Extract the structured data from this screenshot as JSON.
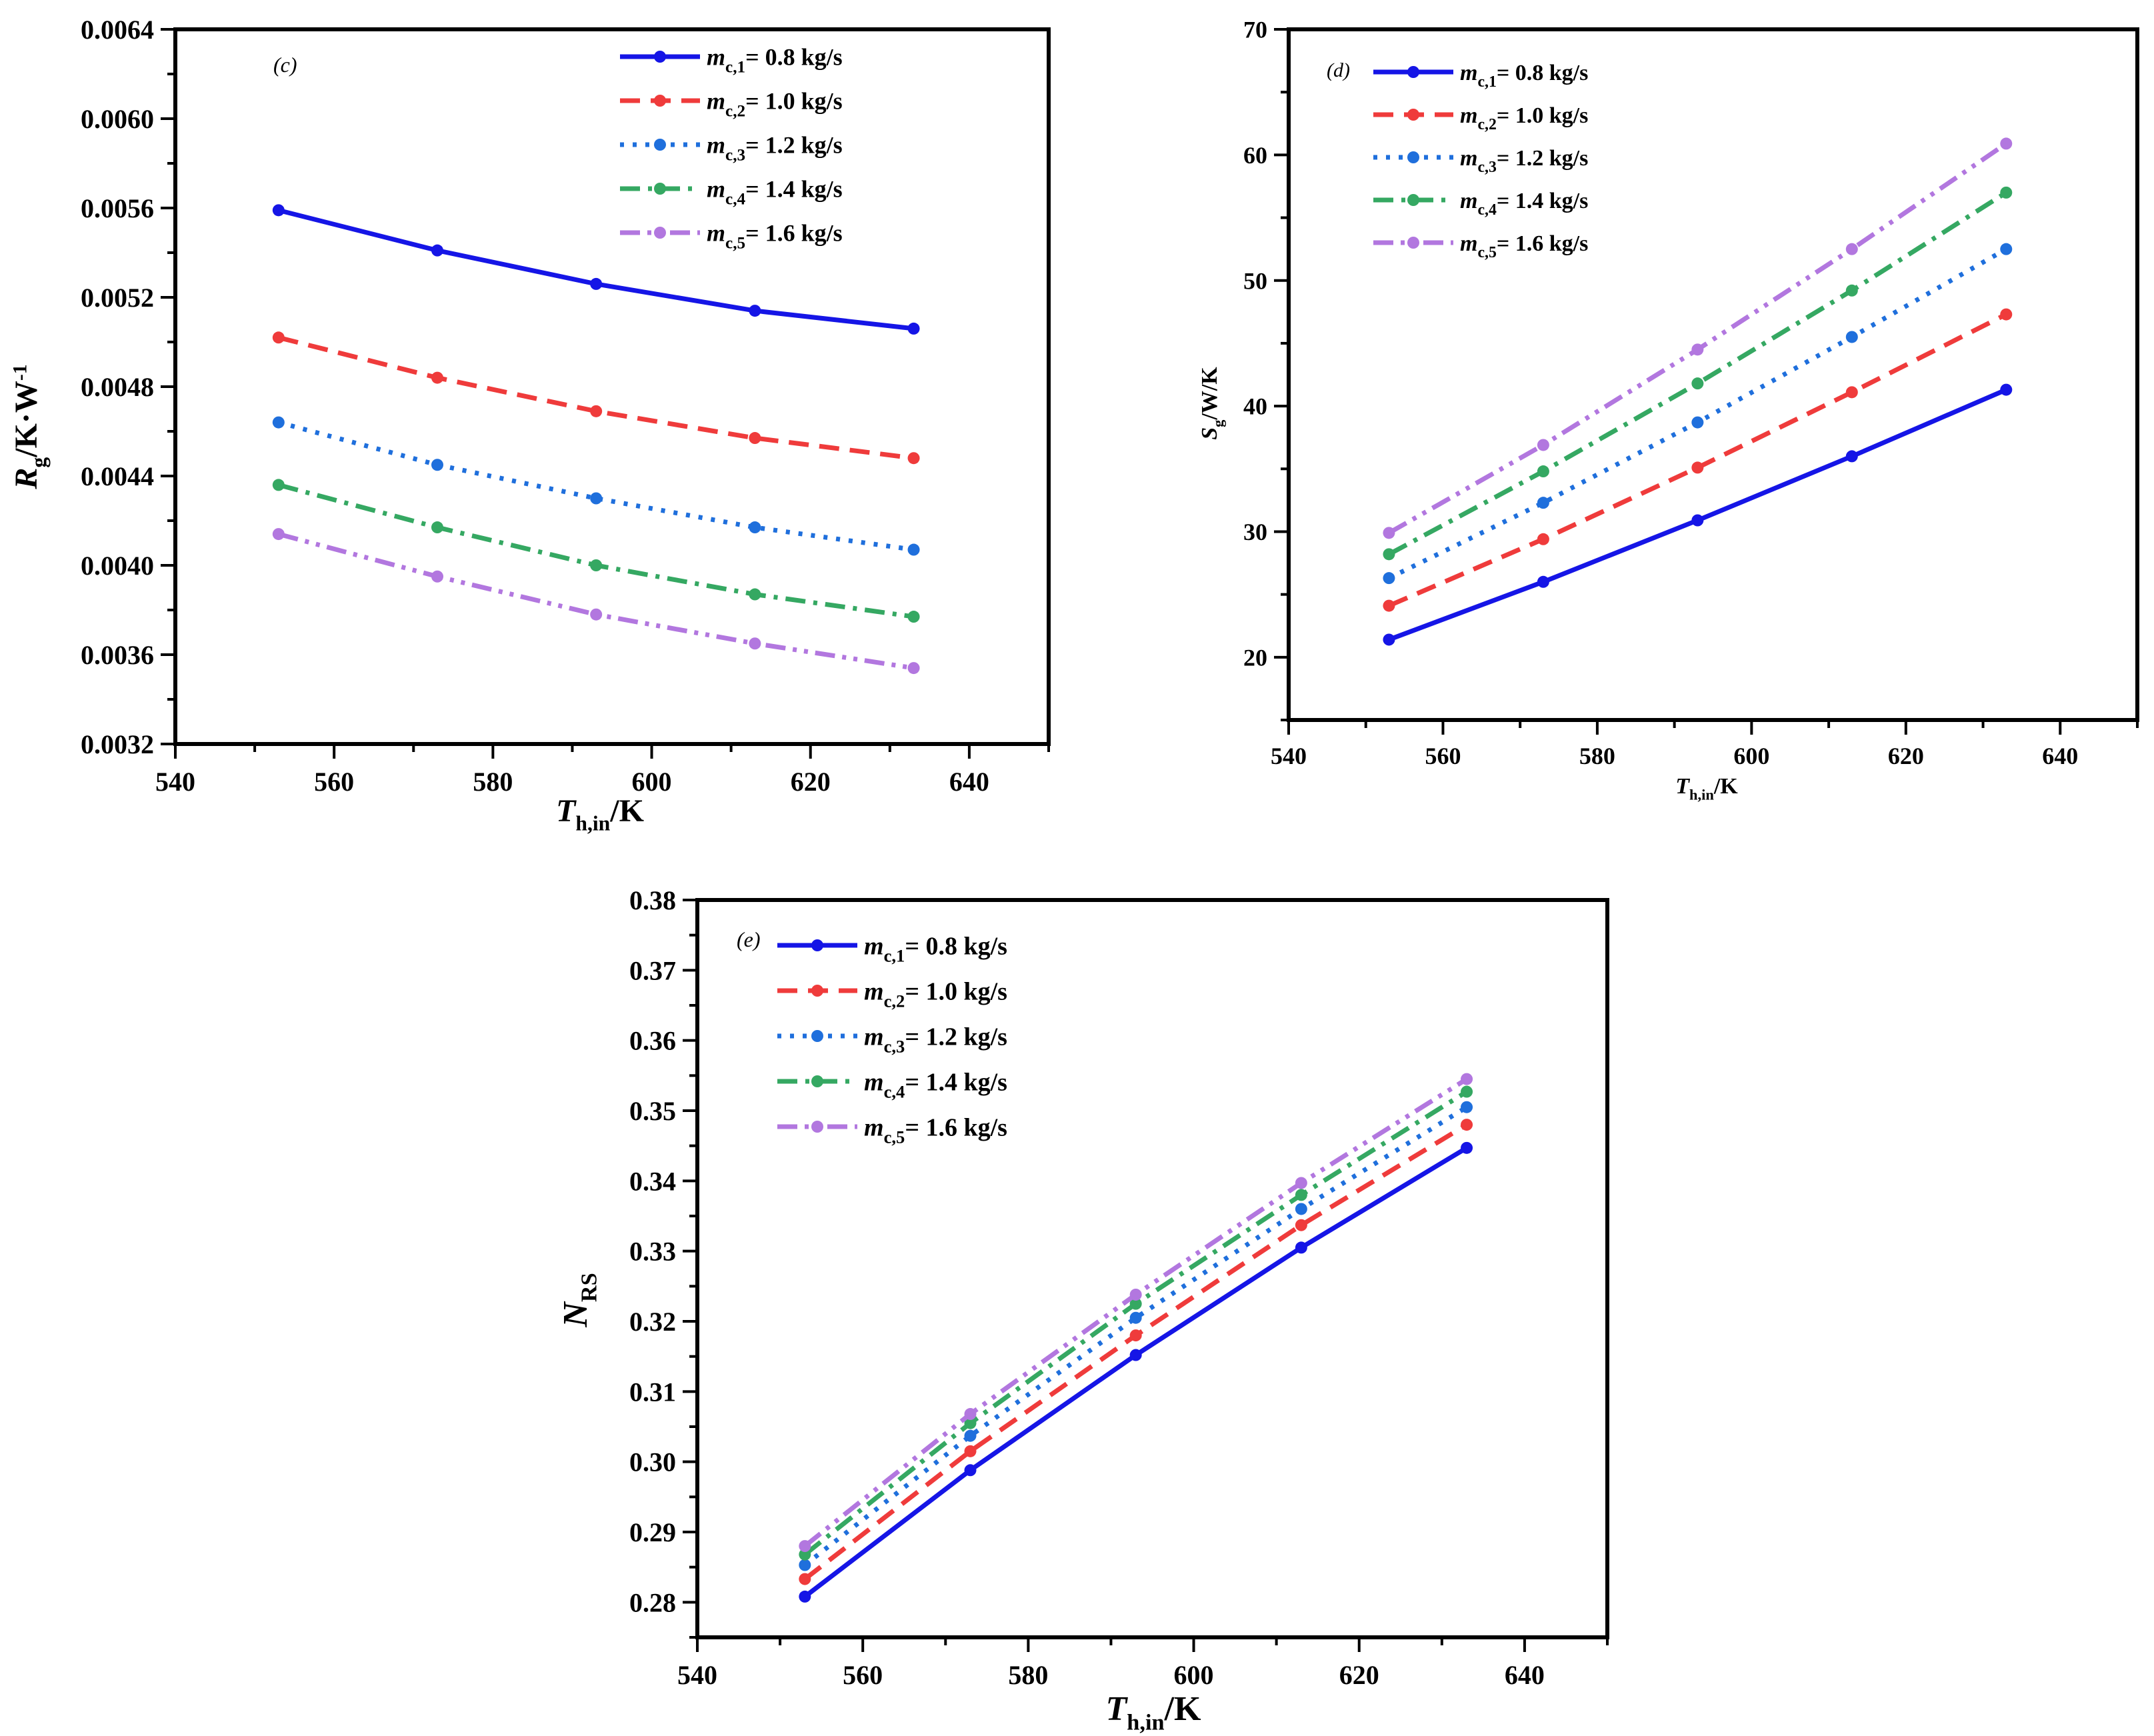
{
  "colors": {
    "s1": "#1515e6",
    "s2": "#ef3b3b",
    "s3": "#1f6fdc",
    "s4": "#35a862",
    "s5": "#b277df"
  },
  "chart_data": [
    {
      "id": "c",
      "type": "line",
      "panel_label": "(c)",
      "xlabel": {
        "main": "T",
        "sub": "h,in",
        "unit": "/K"
      },
      "ylabel": {
        "main": "R",
        "sub": "g",
        "unit": "/K·W",
        "sup": "-1"
      },
      "xlim": [
        540,
        650
      ],
      "ylim": [
        0.0032,
        0.0064
      ],
      "xticks": [
        540,
        560,
        580,
        600,
        620,
        640
      ],
      "yticks": [
        0.0032,
        0.0036,
        0.004,
        0.0044,
        0.0048,
        0.0052,
        0.0056,
        0.006,
        0.0064
      ],
      "ytick_labels": [
        "0.0032",
        "0.0036",
        "0.0040",
        "0.0044",
        "0.0048",
        "0.0052",
        "0.0056",
        "0.0060",
        "0.0064"
      ],
      "x": [
        553,
        573,
        593,
        613,
        633
      ],
      "legend_position": "top-right",
      "series": [
        {
          "name": {
            "m": "m",
            "sub": "c,1",
            "value": "= 0.8 kg/s"
          },
          "color": "#1515e6",
          "dash": "solid",
          "values": [
            0.00559,
            0.00541,
            0.00526,
            0.00514,
            0.00506
          ]
        },
        {
          "name": {
            "m": "m",
            "sub": "c,2",
            "value": "= 1.0 kg/s"
          },
          "color": "#ef3b3b",
          "dash": "dash",
          "values": [
            0.00502,
            0.00484,
            0.00469,
            0.00457,
            0.00448
          ]
        },
        {
          "name": {
            "m": "m",
            "sub": "c,3",
            "value": "= 1.2 kg/s"
          },
          "color": "#1f6fdc",
          "dash": "dot",
          "values": [
            0.00464,
            0.00445,
            0.0043,
            0.00417,
            0.00407
          ]
        },
        {
          "name": {
            "m": "m",
            "sub": "c,4",
            "value": "= 1.4 kg/s"
          },
          "color": "#35a862",
          "dash": "dashdot",
          "values": [
            0.00436,
            0.00417,
            0.004,
            0.00387,
            0.00377
          ]
        },
        {
          "name": {
            "m": "m",
            "sub": "c,5",
            "value": "= 1.6 kg/s"
          },
          "color": "#b277df",
          "dash": "dashdotdot",
          "values": [
            0.00414,
            0.00395,
            0.00378,
            0.00365,
            0.00354
          ]
        }
      ]
    },
    {
      "id": "d",
      "type": "line",
      "panel_label": "(d)",
      "xlabel": {
        "main": "T",
        "sub": "h,in",
        "unit": "/K"
      },
      "ylabel": {
        "main": "S",
        "sub": "g",
        "unit": "/W/K",
        "sup": ""
      },
      "xlim": [
        540,
        650
      ],
      "ylim": [
        15,
        70
      ],
      "xticks": [
        540,
        560,
        580,
        600,
        620,
        640
      ],
      "yticks": [
        20,
        30,
        40,
        50,
        60,
        70
      ],
      "ytick_labels": [
        "20",
        "30",
        "40",
        "50",
        "60",
        "70"
      ],
      "x": [
        553,
        573,
        593,
        613,
        633
      ],
      "legend_position": "top-left",
      "series": [
        {
          "name": {
            "m": "m",
            "sub": "c,1",
            "value": "= 0.8 kg/s"
          },
          "color": "#1515e6",
          "dash": "solid",
          "values": [
            21.4,
            26.0,
            30.9,
            36.0,
            41.3
          ]
        },
        {
          "name": {
            "m": "m",
            "sub": "c,2",
            "value": "= 1.0 kg/s"
          },
          "color": "#ef3b3b",
          "dash": "dash",
          "values": [
            24.1,
            29.4,
            35.1,
            41.1,
            47.3
          ]
        },
        {
          "name": {
            "m": "m",
            "sub": "c,3",
            "value": "= 1.2 kg/s"
          },
          "color": "#1f6fdc",
          "dash": "dot",
          "values": [
            26.3,
            32.3,
            38.7,
            45.5,
            52.5
          ]
        },
        {
          "name": {
            "m": "m",
            "sub": "c,4",
            "value": "= 1.4 kg/s"
          },
          "color": "#35a862",
          "dash": "dashdot",
          "values": [
            28.2,
            34.8,
            41.8,
            49.2,
            57.0
          ]
        },
        {
          "name": {
            "m": "m",
            "sub": "c,5",
            "value": "= 1.6 kg/s"
          },
          "color": "#b277df",
          "dash": "dashdotdot",
          "values": [
            29.9,
            36.9,
            44.5,
            52.5,
            60.9
          ]
        }
      ]
    },
    {
      "id": "e",
      "type": "line",
      "panel_label": "(e)",
      "xlabel": {
        "main": "T",
        "sub": "h,in",
        "unit": "/K"
      },
      "ylabel": {
        "main": "N",
        "sub": "RS",
        "unit": "",
        "sup": ""
      },
      "xlim": [
        540,
        650
      ],
      "ylim": [
        0.275,
        0.38
      ],
      "xticks": [
        540,
        560,
        580,
        600,
        620,
        640
      ],
      "yticks": [
        0.28,
        0.29,
        0.3,
        0.31,
        0.32,
        0.33,
        0.34,
        0.35,
        0.36,
        0.37,
        0.38
      ],
      "ytick_labels": [
        "0.28",
        "0.29",
        "0.30",
        "0.31",
        "0.32",
        "0.33",
        "0.34",
        "0.35",
        "0.36",
        "0.37",
        "0.38"
      ],
      "x": [
        553,
        573,
        593,
        613,
        633
      ],
      "legend_position": "top-left",
      "series": [
        {
          "name": {
            "m": "m",
            "sub": "c,1",
            "value": "= 0.8 kg/s"
          },
          "color": "#1515e6",
          "dash": "solid",
          "values": [
            0.2808,
            0.2988,
            0.3152,
            0.3305,
            0.3447
          ]
        },
        {
          "name": {
            "m": "m",
            "sub": "c,2",
            "value": "= 1.0 kg/s"
          },
          "color": "#ef3b3b",
          "dash": "dash",
          "values": [
            0.2833,
            0.3015,
            0.318,
            0.3337,
            0.348
          ]
        },
        {
          "name": {
            "m": "m",
            "sub": "c,3",
            "value": "= 1.2 kg/s"
          },
          "color": "#1f6fdc",
          "dash": "dot",
          "values": [
            0.2853,
            0.3037,
            0.3205,
            0.336,
            0.3505
          ]
        },
        {
          "name": {
            "m": "m",
            "sub": "c,4",
            "value": "= 1.4 kg/s"
          },
          "color": "#35a862",
          "dash": "dashdot",
          "values": [
            0.2868,
            0.3055,
            0.3225,
            0.338,
            0.3527
          ]
        },
        {
          "name": {
            "m": "m",
            "sub": "c,5",
            "value": "= 1.6 kg/s"
          },
          "color": "#b277df",
          "dash": "dashdotdot",
          "values": [
            0.288,
            0.3068,
            0.3238,
            0.3397,
            0.3545
          ]
        }
      ]
    }
  ]
}
